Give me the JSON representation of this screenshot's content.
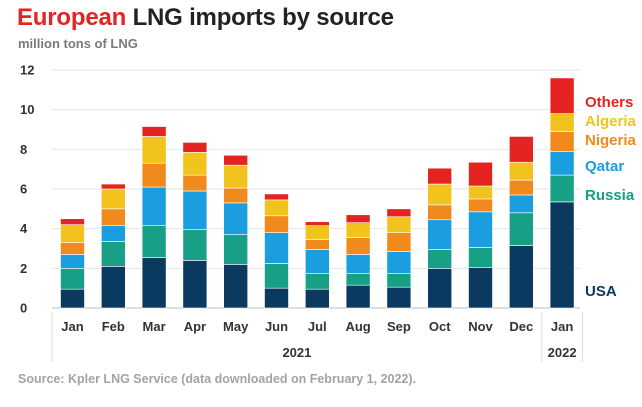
{
  "header": {
    "title_accent": "European",
    "title_rest": "LNG imports by source",
    "subtitle": "million tons of LNG"
  },
  "footer": {
    "source": "Source: Kpler LNG Service (data downloaded on February 1, 2022)."
  },
  "chart_data": {
    "type": "bar",
    "stacked": true,
    "title": "European LNG imports by source",
    "subtitle": "million tons of LNG",
    "categories": [
      "Jan",
      "Feb",
      "Mar",
      "Apr",
      "May",
      "Jun",
      "Jul",
      "Aug",
      "Sep",
      "Oct",
      "Nov",
      "Dec",
      "Jan"
    ],
    "year_labels": [
      {
        "label": "2021",
        "from": 0,
        "to": 11
      },
      {
        "label": "2022",
        "from": 12,
        "to": 12
      }
    ],
    "yticks": [
      0,
      2,
      4,
      6,
      8,
      10,
      12
    ],
    "ylim": [
      0,
      12
    ],
    "grid": true,
    "legend_placement": "right",
    "series": [
      {
        "name": "USA",
        "color": "#0b3a60",
        "values": [
          0.95,
          2.1,
          2.55,
          2.4,
          2.2,
          1.0,
          0.95,
          1.15,
          1.05,
          2.0,
          2.05,
          3.15,
          5.35
        ]
      },
      {
        "name": "Russia",
        "color": "#17a085",
        "values": [
          1.05,
          1.25,
          1.6,
          1.55,
          1.5,
          1.25,
          0.8,
          0.6,
          0.7,
          0.95,
          1.0,
          1.65,
          1.35
        ]
      },
      {
        "name": "Qatar",
        "color": "#1b9ee0",
        "values": [
          0.7,
          0.8,
          1.95,
          1.95,
          1.6,
          1.55,
          1.2,
          0.95,
          1.1,
          1.5,
          1.8,
          0.9,
          1.2
        ]
      },
      {
        "name": "Nigeria",
        "color": "#f08a1c",
        "values": [
          0.6,
          0.85,
          1.2,
          0.8,
          0.75,
          0.85,
          0.5,
          0.85,
          0.95,
          0.75,
          0.65,
          0.75,
          1.0
        ]
      },
      {
        "name": "Algeria",
        "color": "#f2c31c",
        "values": [
          0.9,
          1.0,
          1.35,
          1.15,
          1.15,
          0.8,
          0.7,
          0.75,
          0.8,
          1.05,
          0.65,
          0.9,
          0.9
        ]
      },
      {
        "name": "Others",
        "color": "#e32421",
        "values": [
          0.3,
          0.25,
          0.5,
          0.5,
          0.5,
          0.3,
          0.2,
          0.4,
          0.4,
          0.8,
          1.2,
          1.3,
          1.8
        ]
      }
    ],
    "legend_order": [
      "Others",
      "Algeria",
      "Nigeria",
      "Qatar",
      "Russia",
      "USA"
    ]
  }
}
